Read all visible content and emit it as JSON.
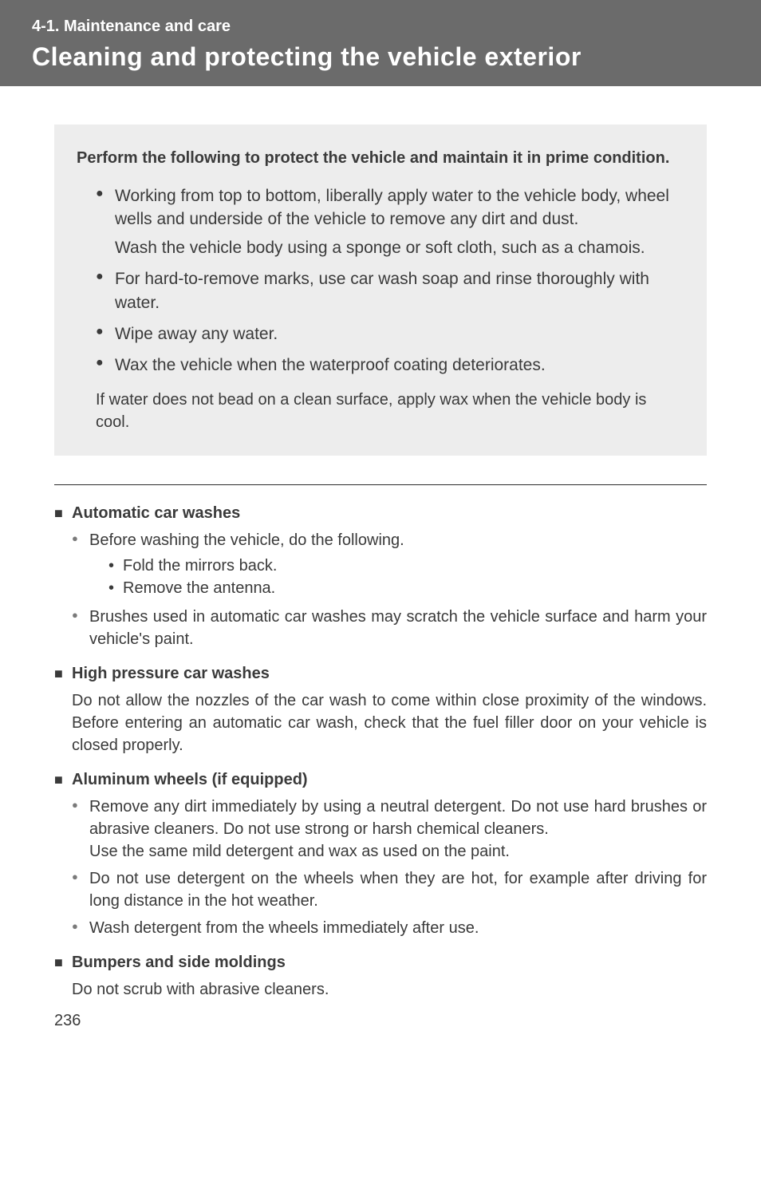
{
  "header": {
    "section": "4-1. Maintenance and care",
    "title": "Cleaning and protecting the vehicle exterior"
  },
  "intro": {
    "lead": "Perform the following to protect the vehicle and maintain it in prime condition.",
    "bullets": [
      {
        "main": "Working from top to bottom, liberally apply water to the vehicle body, wheel wells and underside of the vehicle to remove any dirt and dust.",
        "sub": "Wash the vehicle body using a sponge or soft cloth, such as a chamois."
      },
      {
        "main": "For hard-to-remove marks, use car wash soap and rinse thoroughly with water."
      },
      {
        "main": "Wipe away any water."
      },
      {
        "main": "Wax the vehicle when the waterproof coating deteriorates."
      }
    ],
    "note": "If water does not bead on a clean surface, apply wax when the vehicle body is cool."
  },
  "sections": {
    "auto": {
      "title": "Automatic car washes",
      "c0": "Before washing the vehicle, do the following.",
      "d0": "Fold the mirrors back.",
      "d1": "Remove the antenna.",
      "c1": "Brushes used in automatic car washes may scratch the vehicle surface and harm your vehicle's paint."
    },
    "high": {
      "title": "High pressure car washes",
      "p": "Do not allow the nozzles of the car wash to come within close proximity of the windows. Before entering an automatic car wash, check that the fuel filler door on your vehicle is closed properly."
    },
    "alum": {
      "title": "Aluminum wheels (if equipped)",
      "c0": "Remove any dirt immediately by using a neutral detergent. Do not use hard brushes or abrasive cleaners. Do not use strong or harsh chemical cleaners.",
      "c0b": "Use the same mild detergent and wax as used on the paint.",
      "c1": "Do not use detergent on the wheels when they are hot, for example after driving for long distance in the hot weather.",
      "c2": "Wash detergent from the wheels immediately after use."
    },
    "bump": {
      "title": "Bumpers and side moldings",
      "p": "Do not scrub with abrasive cleaners."
    }
  },
  "pagenum": "236"
}
